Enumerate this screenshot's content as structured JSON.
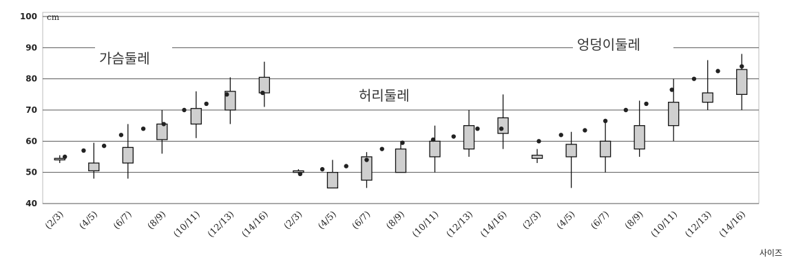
{
  "chart_data": {
    "type": "boxplot",
    "ylim": [
      40,
      100
    ],
    "yticks": [
      40,
      50,
      60,
      70,
      80,
      90,
      100
    ],
    "y_unit": "cm",
    "xlabel": "사이즈",
    "grid": true,
    "categories": [
      "(2/3)",
      "(4/5)",
      "(6/7)",
      "(8/9)",
      "(10/11)",
      "(12/13)",
      "(14/16)",
      "(2/3)",
      "(4/5)",
      "(6/7)",
      "(8/9)",
      "(10/11)",
      "(12/13)",
      "(14/16)",
      "(2/3)",
      "(4/5)",
      "(6/7)",
      "(8/9)",
      "(10/11)",
      "(12/13)",
      "(14/16)"
    ],
    "groups": [
      {
        "label": "가슴둘레",
        "start": 0,
        "count": 7
      },
      {
        "label": "허리둘레",
        "start": 7,
        "count": 7
      },
      {
        "label": "엉덩이둘레",
        "start": 14,
        "count": 7
      }
    ],
    "boxes": [
      {
        "min": 53,
        "q1": 54,
        "q3": 54.5,
        "max": 55.5
      },
      {
        "min": 48,
        "q1": 50.5,
        "q3": 53,
        "max": 59.5
      },
      {
        "min": 48,
        "q1": 53,
        "q3": 58,
        "max": 65.5
      },
      {
        "min": 56,
        "q1": 60.5,
        "q3": 65.5,
        "max": 70
      },
      {
        "min": 61,
        "q1": 65.5,
        "q3": 70.5,
        "max": 76
      },
      {
        "min": 65.5,
        "q1": 70,
        "q3": 76,
        "max": 80.5
      },
      {
        "min": 71,
        "q1": 75.5,
        "q3": 80.5,
        "max": 85.5
      },
      {
        "min": 49.5,
        "q1": 50,
        "q3": 50.5,
        "max": 51
      },
      {
        "min": 45,
        "q1": 45,
        "q3": 50,
        "max": 54
      },
      {
        "min": 45,
        "q1": 47.5,
        "q3": 55,
        "max": 56.5
      },
      {
        "min": 50,
        "q1": 50,
        "q3": 57.5,
        "max": 60
      },
      {
        "min": 50,
        "q1": 55,
        "q3": 60,
        "max": 65
      },
      {
        "min": 55,
        "q1": 57.5,
        "q3": 65,
        "max": 70
      },
      {
        "min": 57.5,
        "q1": 62.5,
        "q3": 67.5,
        "max": 75
      },
      {
        "min": 53,
        "q1": 54.5,
        "q3": 55.5,
        "max": 57.5
      },
      {
        "min": 45,
        "q1": 55,
        "q3": 59,
        "max": 63
      },
      {
        "min": 50,
        "q1": 55,
        "q3": 60,
        "max": 66
      },
      {
        "min": 55,
        "q1": 57.5,
        "q3": 65,
        "max": 73
      },
      {
        "min": 60,
        "q1": 65,
        "q3": 72.5,
        "max": 80
      },
      {
        "min": 70,
        "q1": 72.5,
        "q3": 75.5,
        "max": 86
      },
      {
        "min": 70,
        "q1": 75,
        "q3": 83,
        "max": 88
      }
    ],
    "markers": [
      {
        "x": 0.15,
        "y": 55
      },
      {
        "x": 0.7,
        "y": 57
      },
      {
        "x": 1.3,
        "y": 58.5
      },
      {
        "x": 1.8,
        "y": 62
      },
      {
        "x": 2.45,
        "y": 64
      },
      {
        "x": 3.05,
        "y": 65.5
      },
      {
        "x": 3.65,
        "y": 70
      },
      {
        "x": 4.3,
        "y": 72
      },
      {
        "x": 4.9,
        "y": 75
      },
      {
        "x": 5.95,
        "y": 75.5
      },
      {
        "x": 7.05,
        "y": 49.5
      },
      {
        "x": 7.7,
        "y": 51
      },
      {
        "x": 8.4,
        "y": 52
      },
      {
        "x": 9.0,
        "y": 54
      },
      {
        "x": 9.45,
        "y": 57.5
      },
      {
        "x": 10.05,
        "y": 59.5
      },
      {
        "x": 10.95,
        "y": 60.5
      },
      {
        "x": 11.55,
        "y": 61.5
      },
      {
        "x": 12.25,
        "y": 64
      },
      {
        "x": 12.95,
        "y": 64
      },
      {
        "x": 14.05,
        "y": 60
      },
      {
        "x": 14.7,
        "y": 62
      },
      {
        "x": 15.4,
        "y": 63.5
      },
      {
        "x": 16.0,
        "y": 66.5
      },
      {
        "x": 16.6,
        "y": 70
      },
      {
        "x": 17.2,
        "y": 72
      },
      {
        "x": 17.95,
        "y": 76.5
      },
      {
        "x": 18.6,
        "y": 80
      },
      {
        "x": 19.3,
        "y": 82.5
      },
      {
        "x": 20.0,
        "y": 84
      }
    ]
  }
}
